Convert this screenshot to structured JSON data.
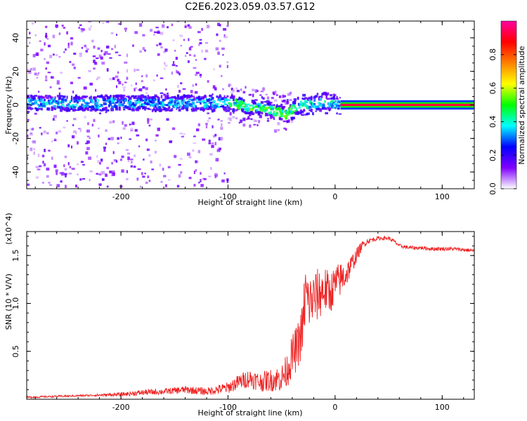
{
  "title": "C2E6.2023.059.03.57.G12",
  "chart_data": [
    {
      "type": "heatmap",
      "xlabel": "Height of straight line (km)",
      "ylabel": "Frequency (Hz)",
      "xlim": [
        -288,
        130
      ],
      "ylim": [
        -50,
        50
      ],
      "xticks": [
        -200,
        -100,
        0,
        100
      ],
      "xtick_labels": [
        "-200",
        "-100",
        "0",
        "100"
      ],
      "yticks": [
        -40,
        -20,
        0,
        20,
        40
      ],
      "ytick_labels": [
        "-40",
        "-20",
        "0",
        "20",
        "40"
      ],
      "colorbar": {
        "label": "Normalized spectral amplitude",
        "range": [
          0,
          1
        ],
        "ticks": [
          0.0,
          0.2,
          0.4,
          0.6,
          0.8
        ],
        "tick_labels": [
          "0.0",
          "0.2",
          "0.4",
          "0.6",
          "0.8"
        ],
        "colormap": [
          "#ffffff",
          "#8000ff",
          "#0000ff",
          "#00ffff",
          "#00ff00",
          "#ffff00",
          "#ff8000",
          "#ff0000",
          "#ff00a0"
        ]
      },
      "ridge": {
        "x": [
          -288,
          -250,
          -200,
          -150,
          -100,
          -90,
          -80,
          -70,
          -60,
          -50,
          -45,
          -40,
          -35,
          -30,
          -20,
          -10,
          0,
          10,
          130
        ],
        "y": [
          1,
          1,
          1,
          1,
          1,
          0.5,
          -2,
          -1,
          -3,
          -5,
          -6,
          -3,
          -1,
          0,
          0.5,
          1,
          0.5,
          0,
          0
        ]
      },
      "strong_signal_range": [
        5,
        130
      ],
      "grid": false
    },
    {
      "type": "line",
      "xlabel": "Height of straight line (km)",
      "ylabel": "SNR (10 * V/V)",
      "y_multiplier": "(x10^4)",
      "xlim": [
        -288,
        130
      ],
      "ylim": [
        0,
        1.75
      ],
      "xticks": [
        -200,
        -100,
        0,
        100
      ],
      "xtick_labels": [
        "-200",
        "-100",
        "0",
        "100"
      ],
      "yticks": [
        0.5,
        1.0,
        1.5
      ],
      "ytick_labels": [
        "0.5",
        "1.0",
        "1.5"
      ],
      "series": [
        {
          "color": "#ee2222",
          "x": [
            -288,
            -260,
            -230,
            -200,
            -180,
            -160,
            -140,
            -120,
            -100,
            -90,
            -80,
            -70,
            -60,
            -50,
            -45,
            -40,
            -35,
            -30,
            -28,
            -25,
            -20,
            -15,
            -10,
            -5,
            0,
            5,
            10,
            15,
            20,
            25,
            30,
            40,
            50,
            55,
            60,
            70,
            80,
            90,
            100,
            110,
            120,
            130
          ],
          "y": [
            0.02,
            0.03,
            0.04,
            0.05,
            0.07,
            0.08,
            0.1,
            0.08,
            0.12,
            0.18,
            0.22,
            0.18,
            0.2,
            0.22,
            0.3,
            0.45,
            0.55,
            0.75,
            1.1,
            1.0,
            1.05,
            1.1,
            1.15,
            1.1,
            1.2,
            1.25,
            1.3,
            1.4,
            1.5,
            1.6,
            1.65,
            1.68,
            1.68,
            1.65,
            1.6,
            1.58,
            1.58,
            1.57,
            1.57,
            1.57,
            1.56,
            1.55
          ],
          "noise": [
            0.01,
            0.01,
            0.01,
            0.02,
            0.03,
            0.03,
            0.04,
            0.04,
            0.06,
            0.08,
            0.1,
            0.1,
            0.12,
            0.14,
            0.18,
            0.22,
            0.25,
            0.28,
            0.4,
            0.3,
            0.28,
            0.28,
            0.25,
            0.22,
            0.2,
            0.18,
            0.15,
            0.1,
            0.08,
            0.05,
            0.03,
            0.02,
            0.02,
            0.02,
            0.02,
            0.02,
            0.02,
            0.02,
            0.02,
            0.02,
            0.02,
            0.02
          ]
        }
      ],
      "grid": false
    }
  ]
}
